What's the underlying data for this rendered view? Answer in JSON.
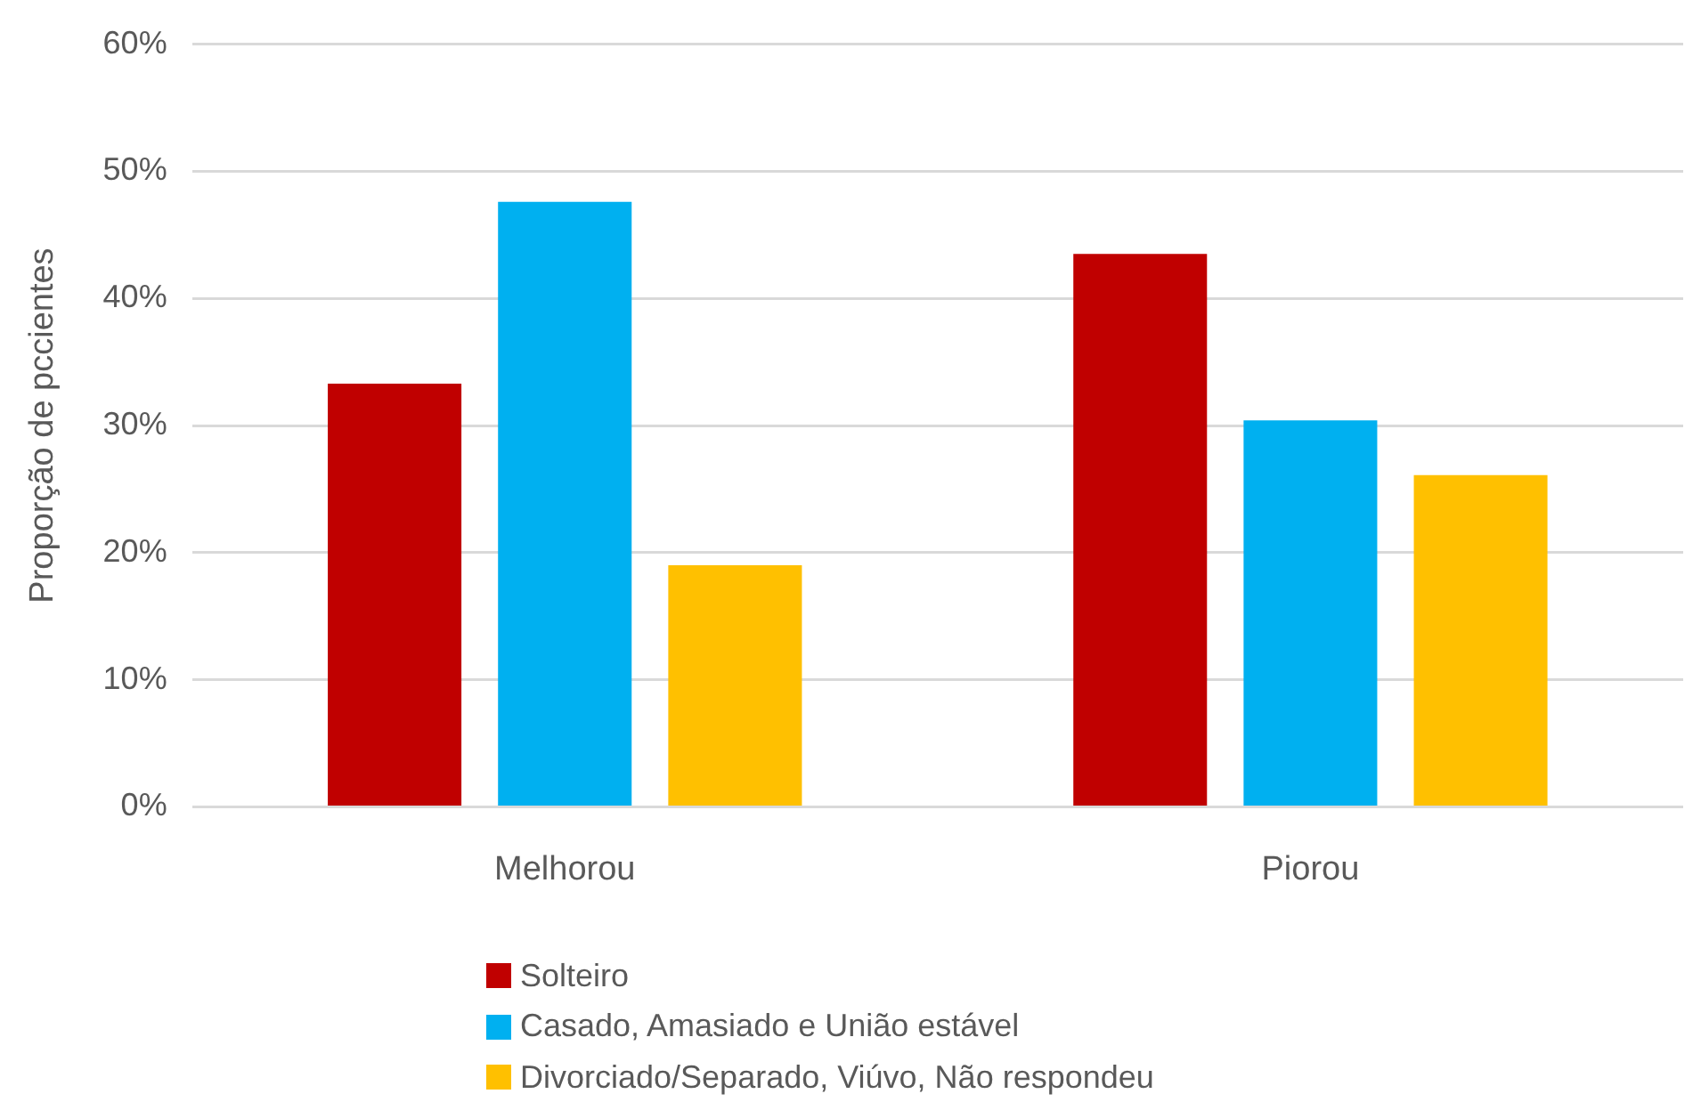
{
  "chart_data": {
    "type": "bar",
    "ylabel": "Proporção de pccientes",
    "categories": [
      "Melhorou",
      "Piorou"
    ],
    "series": [
      {
        "name": "Solteiro",
        "color": "#c00000",
        "values": [
          33.3,
          43.5
        ]
      },
      {
        "name": "Casado, Amasiado e União estável",
        "color": "#00b0f0",
        "values": [
          47.6,
          30.4
        ]
      },
      {
        "name": "Divorciado/Separado, Viúvo, Não respondeu",
        "color": "#ffc000",
        "values": [
          19.0,
          26.1
        ]
      }
    ],
    "ylim": [
      0,
      60
    ],
    "yticks": [
      {
        "value": 0,
        "label": "0%"
      },
      {
        "value": 10,
        "label": "10%"
      },
      {
        "value": 20,
        "label": "20%"
      },
      {
        "value": 30,
        "label": "30%"
      },
      {
        "value": 40,
        "label": "40%"
      },
      {
        "value": 50,
        "label": "50%"
      },
      {
        "value": 60,
        "label": "60%"
      }
    ],
    "grid": "y",
    "legend": "bottom"
  }
}
